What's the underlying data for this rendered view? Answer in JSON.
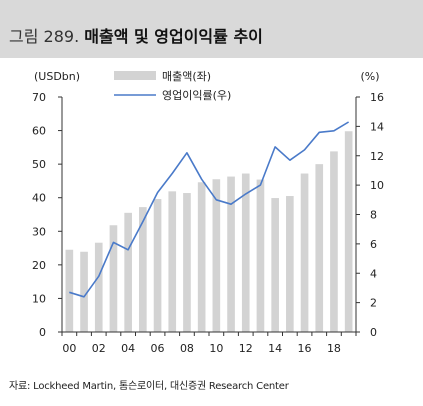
{
  "title": {
    "figure_no": "그림 289.",
    "text": "매출액 및 영업이익률 추이"
  },
  "source": "자료: Lockheed Martin, 톰슨로이터, 대신증권 Research Center",
  "colors": {
    "bar": "#d3d3d3",
    "line": "#4a7ac9",
    "axis": "#333333",
    "title_bg": "#d9d9d9"
  },
  "chart_data": {
    "type": "bar",
    "title": "매출액 및 영업이익률 추이",
    "y_left_unit": "(USDbn)",
    "y_right_unit": "(%)",
    "ylim_left": [
      0,
      70
    ],
    "ylim_right": [
      0,
      16
    ],
    "y_left_ticks": [
      "0",
      "10",
      "20",
      "30",
      "40",
      "50",
      "60",
      "70"
    ],
    "y_right_ticks": [
      "0",
      "2",
      "4",
      "6",
      "8",
      "10",
      "12",
      "14",
      "16"
    ],
    "x_ticks": [
      "00",
      "02",
      "04",
      "06",
      "08",
      "10",
      "12",
      "14",
      "16",
      "18"
    ],
    "categories": [
      "00",
      "01",
      "02",
      "03",
      "04",
      "05",
      "06",
      "07",
      "08",
      "09",
      "10",
      "11",
      "12",
      "13",
      "14",
      "15",
      "16",
      "17",
      "18",
      "19"
    ],
    "grid": false,
    "legend_position": "top",
    "series": [
      {
        "name": "매출액(좌)",
        "type": "bar",
        "axis": "left",
        "values": [
          24.5,
          23.9,
          26.6,
          31.8,
          35.5,
          37.2,
          39.6,
          41.9,
          41.4,
          44.6,
          45.5,
          46.3,
          47.2,
          45.4,
          39.9,
          40.5,
          47.2,
          50.0,
          53.8,
          59.8
        ]
      },
      {
        "name": "영업이익률(우)",
        "type": "line",
        "axis": "right",
        "values": [
          2.7,
          2.4,
          3.8,
          6.1,
          5.6,
          7.5,
          9.5,
          10.8,
          12.2,
          10.4,
          9.0,
          8.7,
          9.4,
          10.0,
          12.6,
          11.7,
          12.4,
          13.6,
          13.7,
          14.3
        ]
      }
    ]
  }
}
